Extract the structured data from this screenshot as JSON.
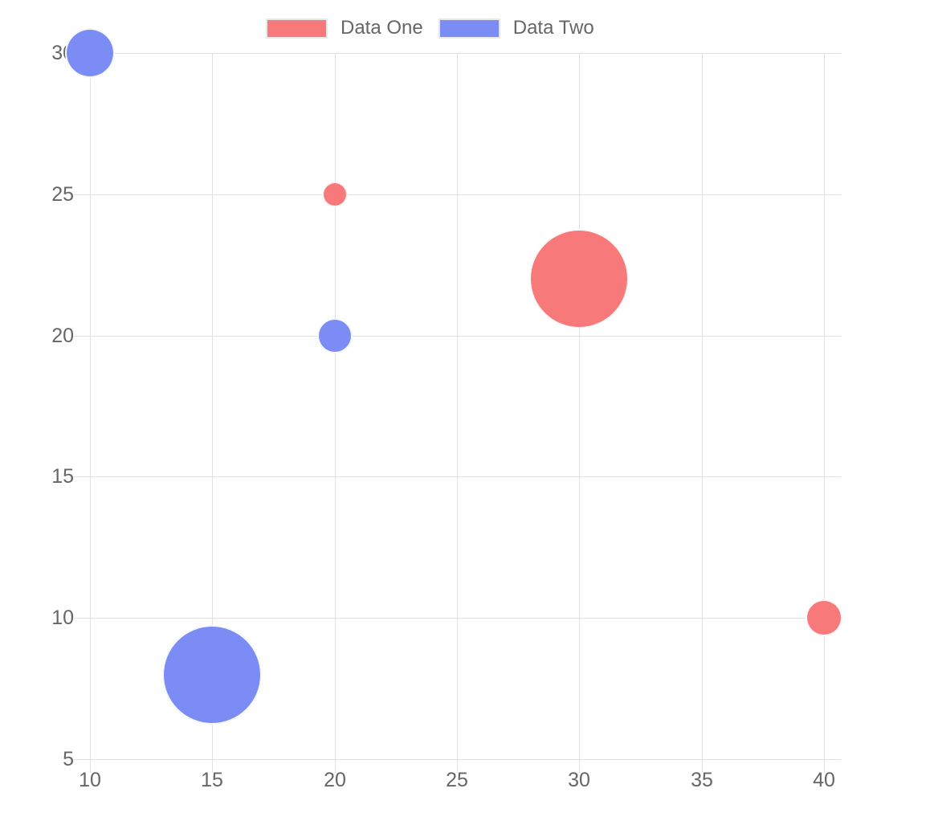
{
  "chart_data": {
    "type": "bubble",
    "title": "",
    "legend": {
      "position": "top",
      "items": [
        {
          "label": "Data One",
          "color": "#f87979"
        },
        {
          "label": "Data Two",
          "color": "#7b8cf5"
        }
      ]
    },
    "series": [
      {
        "name": "Data One",
        "color": "#f87979",
        "points": [
          {
            "x": 20,
            "y": 25,
            "r": 14
          },
          {
            "x": 30,
            "y": 22,
            "r": 60
          },
          {
            "x": 40,
            "y": 10,
            "r": 21
          }
        ]
      },
      {
        "name": "Data Two",
        "color": "#7b8cf5",
        "points": [
          {
            "x": 10,
            "y": 30,
            "r": 29
          },
          {
            "x": 20,
            "y": 20,
            "r": 20
          },
          {
            "x": 15,
            "y": 8,
            "r": 60
          }
        ]
      }
    ],
    "x_axis": {
      "min": 10,
      "max": 40,
      "step": 5,
      "ticks": [
        10,
        15,
        20,
        25,
        30,
        35,
        40
      ]
    },
    "y_axis": {
      "min": 5,
      "max": 30,
      "step": 5,
      "ticks": [
        30,
        25,
        20,
        15,
        10,
        5
      ]
    },
    "grid": true,
    "colors": {
      "gridline": "#e2e2e2",
      "tick_text": "#666666",
      "legend_text": "#666666",
      "legend_box_border": "#e8e8e8",
      "bubble_border": "#ffffff",
      "background": "#ffffff"
    }
  }
}
